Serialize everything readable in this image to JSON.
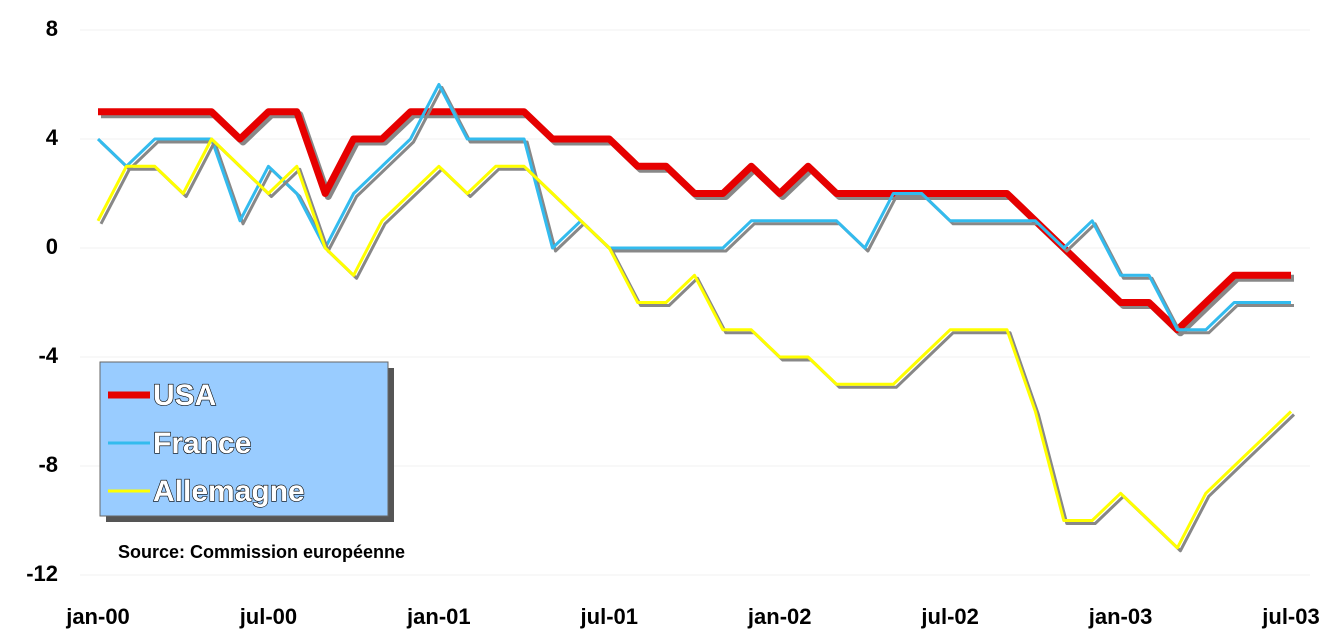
{
  "chart_data": {
    "type": "line",
    "categories": [
      "jan-00",
      null,
      null,
      null,
      null,
      null,
      "jul-00",
      null,
      null,
      null,
      null,
      null,
      "jan-01",
      null,
      null,
      null,
      null,
      null,
      "jul-01",
      null,
      null,
      null,
      null,
      null,
      "jan-02",
      null,
      null,
      null,
      null,
      null,
      "jul-02",
      null,
      null,
      null,
      null,
      null,
      "jan-03",
      null,
      null,
      null,
      null,
      null,
      "jul-03"
    ],
    "series": [
      {
        "name": "USA",
        "color": "#e60000",
        "values": [
          5,
          5,
          5,
          5,
          5,
          4,
          5,
          5,
          2,
          4,
          4,
          5,
          5,
          5,
          5,
          5,
          4,
          4,
          4,
          3,
          3,
          2,
          2,
          3,
          2,
          3,
          2,
          2,
          2,
          2,
          2,
          2,
          2,
          1,
          0,
          -1,
          -2,
          -2,
          -3,
          -2,
          -1,
          -1,
          -1
        ]
      },
      {
        "name": "France",
        "color": "#33bbee",
        "values": [
          4,
          3,
          4,
          4,
          4,
          1,
          3,
          2,
          0,
          2,
          3,
          4,
          6,
          4,
          4,
          4,
          0,
          1,
          0,
          0,
          0,
          0,
          0,
          1,
          1,
          1,
          1,
          0,
          2,
          2,
          1,
          1,
          1,
          1,
          0,
          1,
          -1,
          -1,
          -3,
          -3,
          -2,
          -2,
          -2
        ]
      },
      {
        "name": "Allemagne",
        "color": "#ffff00",
        "values": [
          1,
          3,
          3,
          2,
          4,
          3,
          2,
          3,
          0,
          -1,
          1,
          2,
          3,
          2,
          3,
          3,
          2,
          1,
          0,
          -2,
          -2,
          -1,
          -3,
          -3,
          -4,
          -4,
          -5,
          -5,
          -5,
          -4,
          -3,
          -3,
          -3,
          -6,
          -10,
          -10,
          -9,
          -10,
          -11,
          -9,
          -8,
          -7,
          -6
        ]
      }
    ],
    "ylim": [
      -12,
      8
    ],
    "yticks": [
      -12,
      -8,
      -4,
      0,
      4,
      8
    ],
    "grid": true,
    "legend": "lower left",
    "annotation": "Source: Commission européenne"
  }
}
